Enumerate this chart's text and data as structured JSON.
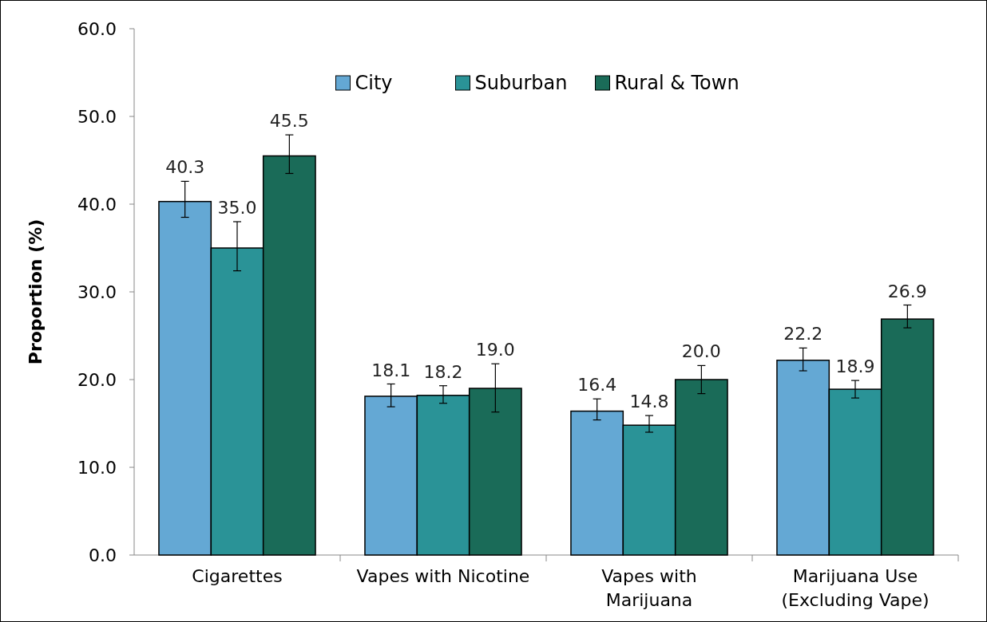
{
  "chart_data": {
    "type": "bar",
    "ylabel": "Proportion (%)",
    "categories": [
      "Cigarettes",
      "Vapes with Nicotine",
      "Vapes with\nMarijuana",
      "Marijuana Use\n(Excluding Vape)"
    ],
    "series": [
      {
        "name": "City",
        "color": "#64a8d4",
        "values": [
          40.3,
          18.1,
          16.4,
          22.2
        ],
        "value_labels": [
          "40.3",
          "18.1",
          "16.4",
          "22.2"
        ],
        "errors": [
          [
            38.5,
            42.6
          ],
          [
            16.9,
            19.5
          ],
          [
            15.4,
            17.8
          ],
          [
            21.0,
            23.6
          ]
        ]
      },
      {
        "name": "Suburban",
        "color": "#2a9397",
        "values": [
          35.0,
          18.2,
          14.8,
          18.9
        ],
        "value_labels": [
          "35.0",
          "18.2",
          "14.8",
          "18.9"
        ],
        "errors": [
          [
            32.4,
            38.0
          ],
          [
            17.3,
            19.3
          ],
          [
            14.0,
            15.9
          ],
          [
            17.9,
            19.9
          ]
        ]
      },
      {
        "name": "Rural & Town",
        "color": "#1a6b58",
        "values": [
          45.5,
          19.0,
          20.0,
          26.9
        ],
        "value_labels": [
          "45.5",
          "19.0",
          "20.0",
          "26.9"
        ],
        "errors": [
          [
            43.5,
            47.9
          ],
          [
            16.3,
            21.8
          ],
          [
            18.4,
            21.6
          ],
          [
            25.9,
            28.5
          ]
        ]
      }
    ],
    "ylim": [
      0,
      60
    ],
    "yticks": [
      {
        "value": 0,
        "label": "0.0"
      },
      {
        "value": 10,
        "label": "10.0"
      },
      {
        "value": 20,
        "label": "20.0"
      },
      {
        "value": 30,
        "label": "30.0"
      },
      {
        "value": 40,
        "label": "40.0"
      },
      {
        "value": 50,
        "label": "50.0"
      },
      {
        "value": 60,
        "label": "60.0"
      }
    ],
    "legend": "top",
    "grid": false
  }
}
